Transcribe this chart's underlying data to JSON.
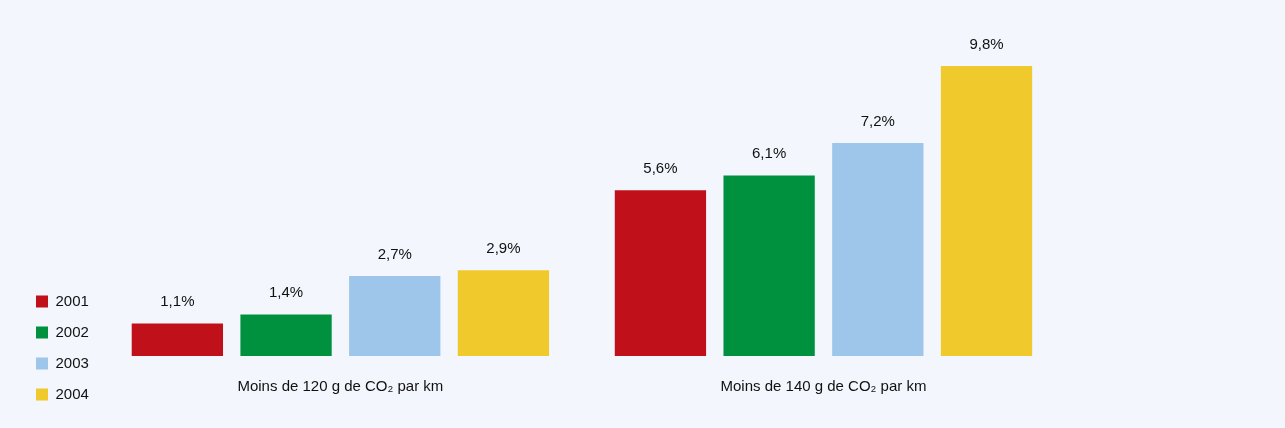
{
  "chart_data": {
    "type": "bar",
    "categories": [
      "Moins de 120 g de CO₂ par km",
      "Moins de 140 g de CO₂ par km"
    ],
    "series": [
      {
        "name": "2001",
        "color": "#c0111b",
        "values": [
          1.1,
          5.6
        ],
        "value_labels": [
          "1,1%",
          "5,6%"
        ]
      },
      {
        "name": "2002",
        "color": "#00913f",
        "values": [
          1.4,
          6.1
        ],
        "value_labels": [
          "1,4%",
          "6,1%"
        ]
      },
      {
        "name": "2003",
        "color": "#9dc6ea",
        "values": [
          2.7,
          7.2
        ],
        "value_labels": [
          "2,7%",
          "7,2%"
        ]
      },
      {
        "name": "2004",
        "color": "#f0c92c",
        "values": [
          2.9,
          9.8
        ],
        "value_labels": [
          "2,9%",
          "9,8%"
        ]
      }
    ],
    "grid": false,
    "legend": "left"
  }
}
